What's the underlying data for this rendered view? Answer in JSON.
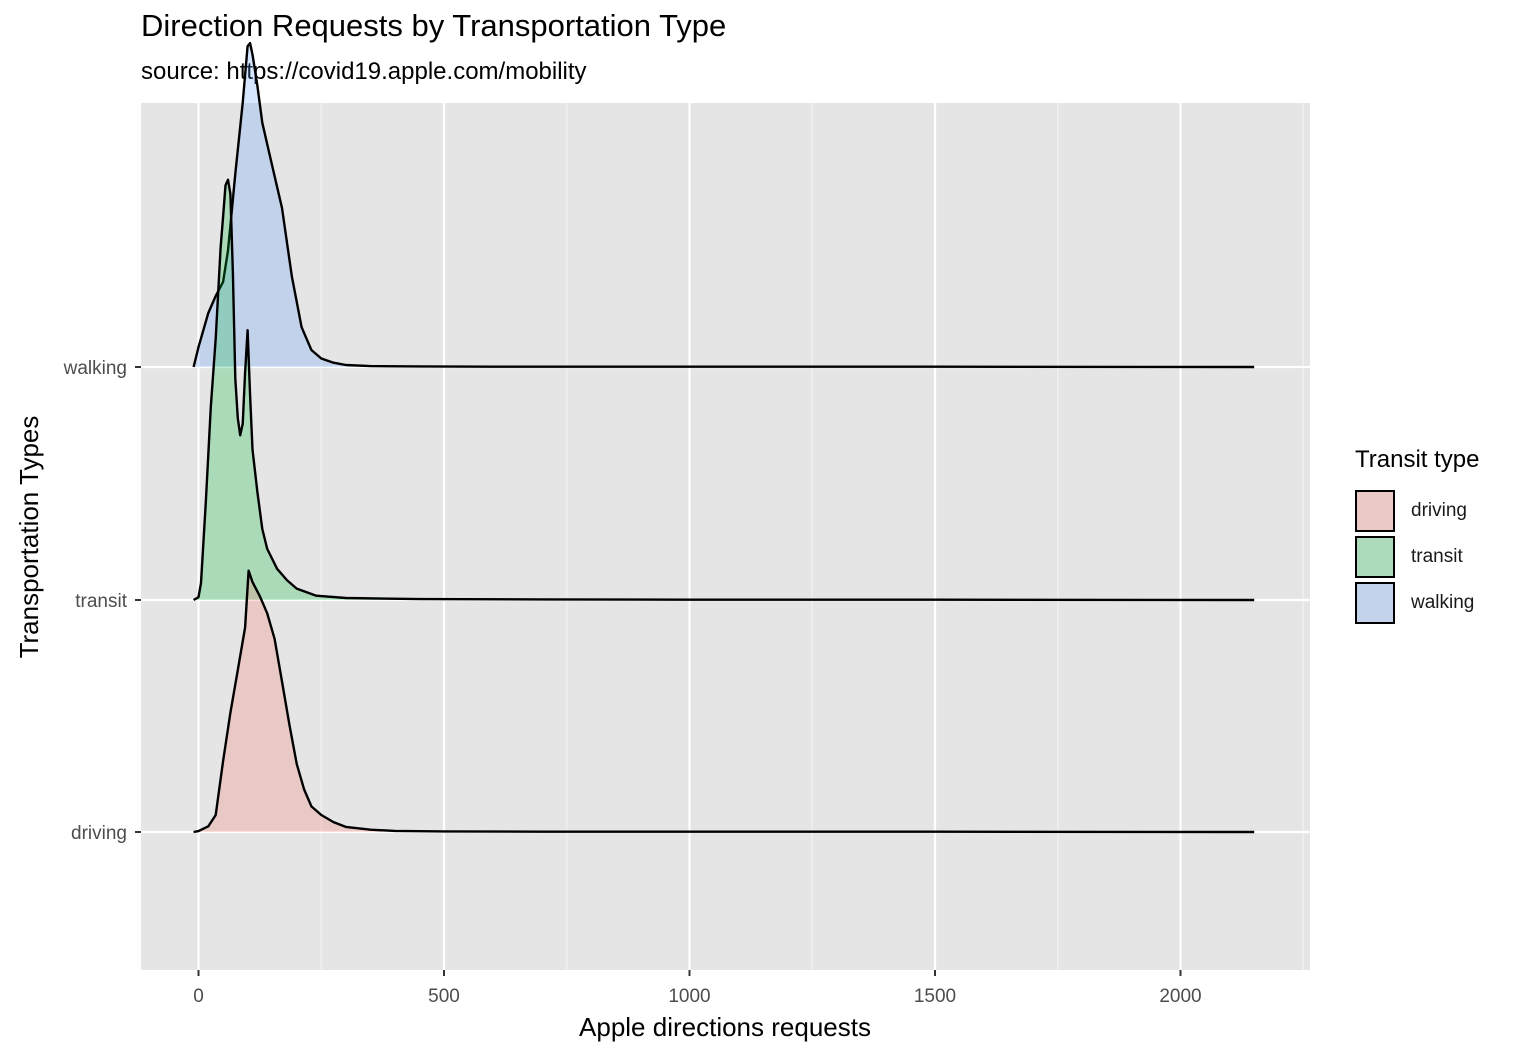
{
  "chart_data": {
    "type": "ridgeline",
    "title": "Direction Requests by Transportation Type",
    "subtitle": "source: https://covid19.apple.com/mobility",
    "xlabel": "Apple directions requests",
    "ylabel": "Transportation Types",
    "x_ticks": [
      0,
      500,
      1000,
      1500,
      2000
    ],
    "xlim": [
      -120,
      2260
    ],
    "categories": [
      "driving",
      "transit",
      "walking"
    ],
    "legend": {
      "title": "Transit type",
      "placement": "right",
      "items": [
        "driving",
        "transit",
        "walking"
      ]
    },
    "grid": true,
    "series": [
      {
        "name": "driving",
        "color": "#f8766d",
        "x": [
          -10,
          0,
          20,
          35,
          50,
          65,
          80,
          95,
          102,
          110,
          125,
          140,
          155,
          170,
          185,
          200,
          215,
          230,
          250,
          275,
          300,
          350,
          400,
          500,
          700,
          1000,
          1500,
          2150
        ],
        "density": [
          0.0,
          0.003,
          0.02,
          0.06,
          0.25,
          0.42,
          0.57,
          0.72,
          0.92,
          0.88,
          0.83,
          0.77,
          0.68,
          0.53,
          0.38,
          0.24,
          0.15,
          0.09,
          0.06,
          0.035,
          0.018,
          0.008,
          0.004,
          0.002,
          0.001,
          0.001,
          0.001,
          0.0
        ]
      },
      {
        "name": "transit",
        "color": "#00ba38",
        "x": [
          -10,
          0,
          5,
          15,
          25,
          35,
          45,
          50,
          55,
          60,
          65,
          70,
          75,
          80,
          85,
          90,
          95,
          100,
          105,
          110,
          120,
          130,
          140,
          160,
          180,
          200,
          240,
          300,
          450,
          700,
          1000,
          1500,
          2150
        ],
        "density": [
          0.0,
          0.01,
          0.06,
          0.35,
          0.68,
          0.92,
          1.24,
          1.35,
          1.46,
          1.48,
          1.43,
          1.15,
          0.78,
          0.64,
          0.58,
          0.62,
          0.8,
          0.95,
          0.72,
          0.53,
          0.38,
          0.25,
          0.18,
          0.11,
          0.07,
          0.04,
          0.015,
          0.007,
          0.003,
          0.002,
          0.001,
          0.001,
          0.0
        ]
      },
      {
        "name": "walking",
        "color": "#619cff",
        "x": [
          -10,
          0,
          10,
          20,
          35,
          50,
          60,
          75,
          90,
          100,
          105,
          110,
          120,
          130,
          150,
          170,
          190,
          210,
          230,
          250,
          275,
          300,
          350,
          450,
          600,
          1000,
          1500,
          2150
        ],
        "density": [
          0.0,
          0.07,
          0.13,
          0.19,
          0.25,
          0.3,
          0.41,
          0.68,
          0.93,
          1.13,
          1.14,
          1.1,
          0.99,
          0.86,
          0.71,
          0.56,
          0.32,
          0.14,
          0.06,
          0.03,
          0.015,
          0.007,
          0.003,
          0.002,
          0.001,
          0.001,
          0.001,
          0.0
        ]
      }
    ]
  }
}
